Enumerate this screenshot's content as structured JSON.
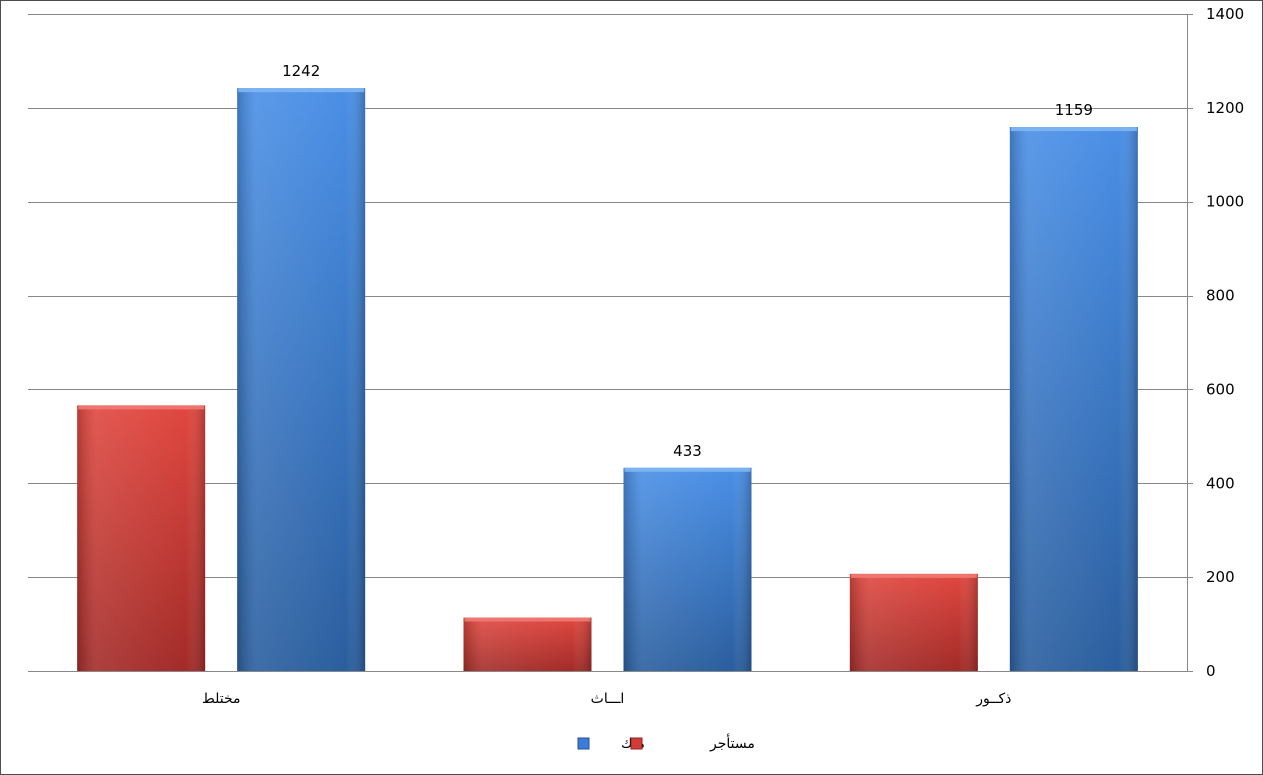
{
  "chart_data": {
    "type": "bar",
    "categories": [
      "ذكــور",
      "اـــاث",
      "مختلط"
    ],
    "series": [
      {
        "name": "ملك",
        "color": "#3B7DD8",
        "values": [
          1159,
          433,
          1242
        ],
        "labels": [
          "1159",
          "433",
          "1242"
        ]
      },
      {
        "name": "مستأجر",
        "color": "#D23B36",
        "values": [
          207,
          114,
          566
        ],
        "labels": [
          "",
          "",
          ""
        ]
      }
    ],
    "ylim": [
      0,
      1400
    ],
    "yticks": [
      0,
      200,
      400,
      600,
      800,
      1000,
      1200,
      1400
    ],
    "y_axis_side": "right",
    "grid": true,
    "legend": "bottom",
    "category_order": "right-to-left",
    "bar_order_in_group": [
      "مستأجر",
      "ملك"
    ],
    "title": "",
    "xlabel": "",
    "ylabel": ""
  }
}
